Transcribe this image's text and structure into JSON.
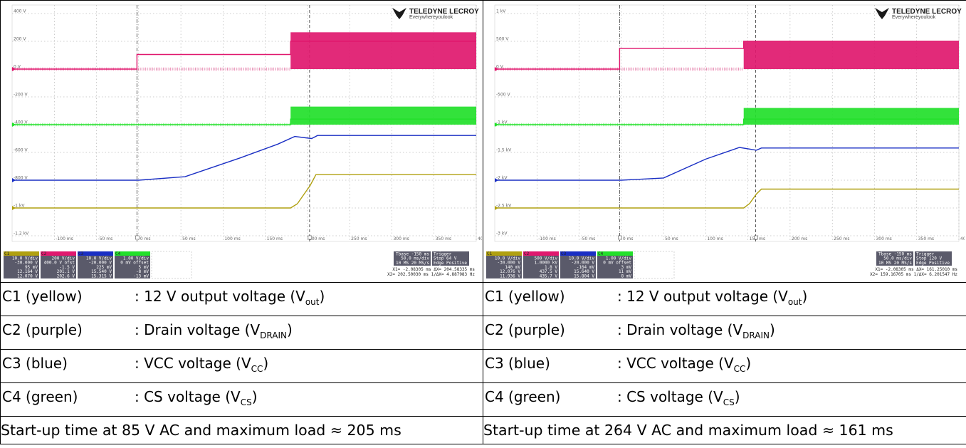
{
  "brand": {
    "name": "TELEDYNE LECROY",
    "tagline": "Everywhereyoulook"
  },
  "legend": [
    {
      "channel": "C1 (yellow)",
      "desc": ": 12 V output voltage (V",
      "sub": "out",
      "close": ")"
    },
    {
      "channel": "C2 (purple)",
      "desc": ": Drain voltage (V",
      "sub": "DRAIN",
      "close": ")"
    },
    {
      "channel": "C3 (blue)",
      "desc": ": VCC voltage (V",
      "sub": "CC",
      "close": ")"
    },
    {
      "channel": "C4 (green)",
      "desc": ": CS voltage (V",
      "sub": "CS",
      "close": ")"
    }
  ],
  "colors": {
    "C1": "#b0a010",
    "C2": "#e0186e",
    "C3": "#1a2fc4",
    "C4": "#22e02a",
    "grid": "#9a9a9a",
    "background": "#ffffff"
  },
  "chart_data": [
    {
      "type": "line",
      "caption": "Start-up time at 85 V AC and maximum load ≈ 205 ms",
      "x_ticks": [
        "-100 ms",
        "-50 ms",
        "0 ms",
        "50 ms",
        "100 ms",
        "150 ms",
        "200 ms",
        "250 ms",
        "300 ms",
        "350 ms",
        "400 ms"
      ],
      "y_ticks": [
        "400 V",
        "200 V",
        "0 V",
        "-200 V",
        "-400 V",
        "-600 V",
        "-800 V",
        "-1 kV",
        "-1.2 kV"
      ],
      "xlim": [
        -150,
        400
      ],
      "cursors": [
        -2.08305,
        202.5003
      ],
      "startup_ms": 205,
      "series": [
        {
          "name": "C2",
          "color": "#e0186e",
          "kind": "switching",
          "points": [
            [
              -150,
              0
            ],
            [
              -2,
              0
            ],
            [
              -2,
              105
            ],
            [
              180,
              105
            ],
            [
              180,
              200
            ],
            [
              400,
              200
            ]
          ],
          "burst_from": 180,
          "burst_low": 0,
          "burst_high": 265
        },
        {
          "name": "C4",
          "color": "#22e02a",
          "kind": "switching",
          "points": [
            [
              -150,
              -400
            ],
            [
              180,
              -400
            ],
            [
              180,
              -360
            ],
            [
              400,
              -360
            ]
          ],
          "burst_from": 180,
          "burst_low": -400,
          "burst_high": -270
        },
        {
          "name": "C3",
          "color": "#1a2fc4",
          "kind": "line",
          "points": [
            [
              -150,
              -800
            ],
            [
              0,
              -800
            ],
            [
              55,
              -775
            ],
            [
              120,
              -640
            ],
            [
              165,
              -540
            ],
            [
              185,
              -485
            ],
            [
              198,
              -495
            ],
            [
              205,
              -500
            ],
            [
              212,
              -478
            ],
            [
              400,
              -478
            ]
          ]
        },
        {
          "name": "C1",
          "color": "#b0a010",
          "kind": "line",
          "points": [
            [
              -150,
              -1000
            ],
            [
              180,
              -1000
            ],
            [
              188,
              -970
            ],
            [
              196,
              -900
            ],
            [
              203,
              -840
            ],
            [
              210,
              -760
            ],
            [
              400,
              -760
            ]
          ]
        }
      ],
      "panel": {
        "channels": [
          {
            "label": "C1",
            "lines": [
              "10.0 V/div",
              "-30.000 V",
              "95 mV",
              "12.164 V",
              "12.070 V"
            ]
          },
          {
            "label": "C2",
            "lines": [
              "200 V/div",
              "400.0 V ofst",
              "-1.5 V",
              "201.1 V",
              "202.6 V"
            ]
          },
          {
            "label": "C3",
            "lines": [
              "10.0 V/div",
              "-20.000 V",
              "225 mV",
              "15.540 V",
              "15.315 V"
            ]
          },
          {
            "label": "C4",
            "lines": [
              "1.00 V/div",
              "0 mV offset",
              "5 mV",
              "-8 mV",
              "-13 mV"
            ]
          }
        ],
        "timebase": [
          "Tbase   -150 ms",
          "50.0 ms/div",
          "10 MS   20 MS/s"
        ],
        "trigger": [
          "Trigger",
          "Stop   64 V",
          "Edge   Positive"
        ],
        "x_readout": [
          "X1=  -2.08305 ms   ΔX= 204.58335 ms",
          "X2= 202.50030 ms  1/ΔX=   4.887983 Hz"
        ]
      }
    },
    {
      "type": "line",
      "caption": "Start-up time at 264 V AC and maximum load ≈ 161 ms",
      "x_ticks": [
        "-100 ms",
        "-50 ms",
        "0 ms",
        "50 ms",
        "100 ms",
        "150 ms",
        "200 ms",
        "250 ms",
        "300 ms",
        "350 ms",
        "400 ms"
      ],
      "y_ticks": [
        "1 kV",
        "500 V",
        "0 V",
        "-500 V",
        "-1 kV",
        "-1.5 kV",
        "-2 kV",
        "-2.5 kV",
        "-3 kV"
      ],
      "xlim": [
        -150,
        400
      ],
      "cursors": [
        -2.08305,
        159.16705
      ],
      "startup_ms": 161,
      "series": [
        {
          "name": "C2",
          "color": "#e0186e",
          "kind": "switching",
          "points": [
            [
              -150,
              0
            ],
            [
              -2,
              0
            ],
            [
              -2,
              370
            ],
            [
              145,
              370
            ],
            [
              145,
              500
            ],
            [
              400,
              500
            ]
          ],
          "burst_from": 145,
          "burst_low": 0,
          "burst_high": 500
        },
        {
          "name": "C4",
          "color": "#22e02a",
          "kind": "switching",
          "points": [
            [
              -150,
              -1000
            ],
            [
              145,
              -1000
            ],
            [
              145,
              -900
            ],
            [
              400,
              -900
            ]
          ],
          "burst_from": 145,
          "burst_low": -1000,
          "burst_high": -700
        },
        {
          "name": "C3",
          "color": "#1a2fc4",
          "kind": "line",
          "points": [
            [
              -150,
              -2000
            ],
            [
              0,
              -2000
            ],
            [
              50,
              -1960
            ],
            [
              100,
              -1620
            ],
            [
              140,
              -1410
            ],
            [
              152,
              -1440
            ],
            [
              160,
              -1460
            ],
            [
              166,
              -1420
            ],
            [
              400,
              -1420
            ]
          ]
        },
        {
          "name": "C1",
          "color": "#b0a010",
          "kind": "line",
          "points": [
            [
              -150,
              -2500
            ],
            [
              145,
              -2500
            ],
            [
              152,
              -2420
            ],
            [
              160,
              -2250
            ],
            [
              166,
              -2160
            ],
            [
              400,
              -2160
            ]
          ]
        }
      ],
      "panel": {
        "channels": [
          {
            "label": "C1",
            "lines": [
              "10.0 V/div",
              "-30.000 V",
              "140 mV",
              "12.076 V",
              "11.936 V"
            ]
          },
          {
            "label": "C2",
            "lines": [
              "500 V/div",
              "1.0000 kV",
              "1.8 V",
              "437.5 V",
              "435.7 V"
            ]
          },
          {
            "label": "C3",
            "lines": [
              "10.0 V/div",
              "-20.000 V",
              "-164 mV",
              "15.640 V",
              "15.804 V"
            ]
          },
          {
            "label": "C4",
            "lines": [
              "1.00 V/div",
              "0 mV offset",
              "3 mV",
              "11 mV",
              "8 mV"
            ]
          }
        ],
        "timebase": [
          "Tbase   -150 ms",
          "50.0 ms/div",
          "10 MS   20 MS/s"
        ],
        "trigger": [
          "Trigger",
          "Stop   120 V",
          "Edge   Positive"
        ],
        "x_readout": [
          "X1=  -2.08305 ms   ΔX= 161.25010 ms",
          "X2= 159.16705 ms  1/ΔX=   6.201547 Hz"
        ]
      }
    }
  ]
}
